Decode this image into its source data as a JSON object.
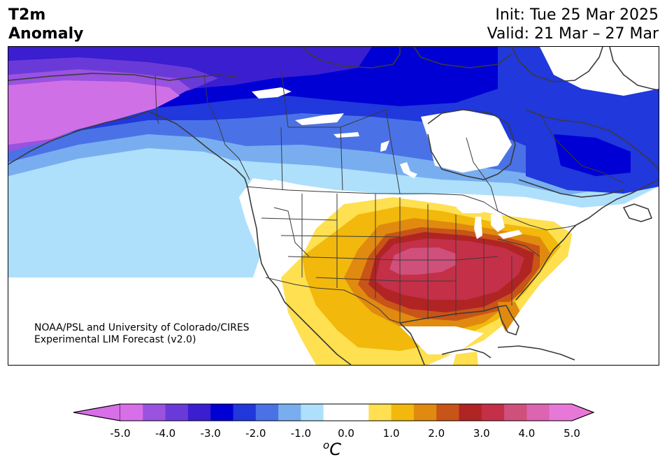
{
  "header": {
    "title_line1": "T2m",
    "title_line2": "Anomaly",
    "init": "Init: Tue 25 Mar 2025",
    "valid": "Valid: 21 Mar – 27 Mar"
  },
  "credit": {
    "line1": "NOAA/PSL and University of Colorado/CIRES",
    "line2": "Experimental LIM Forecast (v2.0)"
  },
  "colorbar": {
    "ticks": [
      "-5.0",
      "-4.0",
      "-3.0",
      "-2.0",
      "-1.0",
      "0.0",
      "1.0",
      "2.0",
      "3.0",
      "4.0",
      "5.0"
    ],
    "units_sup": "o",
    "units": "C",
    "colors": [
      "#d86ee8",
      "#9a52e0",
      "#6a3ad8",
      "#3a1ed0",
      "#0000d4",
      "#2038dc",
      "#4a72e6",
      "#78aef0",
      "#aee0fc",
      "#ffffff",
      "#ffffff",
      "#fee050",
      "#f2b80c",
      "#e08a10",
      "#c85418",
      "#b02424",
      "#c43048",
      "#d0507c",
      "#dc64b0",
      "#e878d8"
    ]
  },
  "map": {
    "region": "North America",
    "palette": {
      "cold_extreme": "#d070e6",
      "cold_strong": "#3020cc",
      "cold_moderate": "#4a72e6",
      "cold_weak": "#aee0fc",
      "warm_weak": "#fee050",
      "warm_moderate": "#f2b80c",
      "warm_strong": "#b02424",
      "warm_extreme": "#d0507c"
    }
  }
}
